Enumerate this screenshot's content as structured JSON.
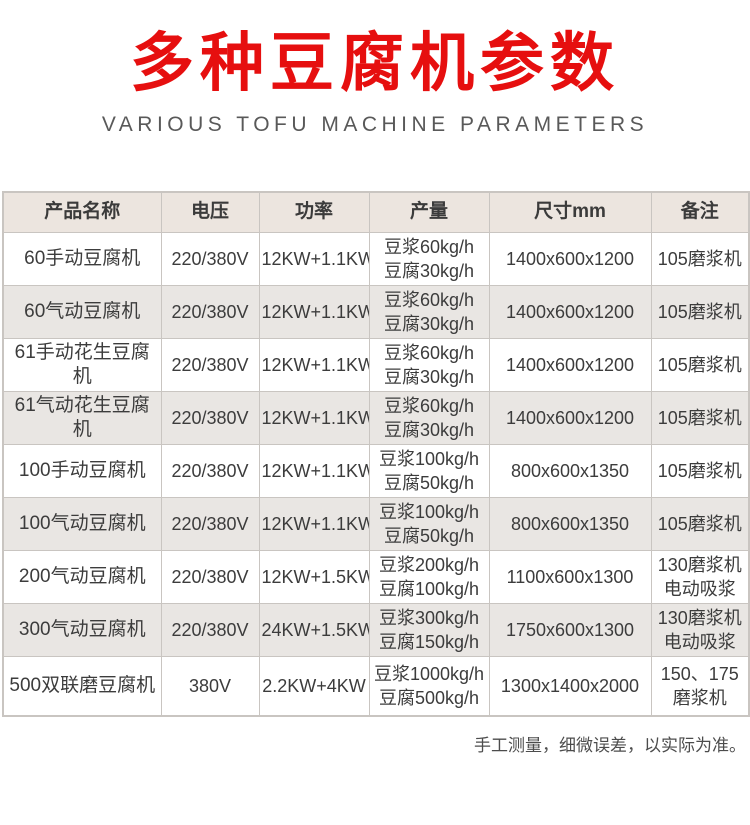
{
  "header": {
    "title": "多种豆腐机参数",
    "subtitle": "VARIOUS TOFU MACHINE PARAMETERS"
  },
  "table": {
    "columns": [
      "产品名称",
      "电压",
      "功率",
      "产量",
      "尺寸mm",
      "备注"
    ],
    "rows": [
      [
        "60手动豆腐机",
        "220/380V",
        "12KW+1.1KW",
        "豆浆60kg/h\n豆腐30kg/h",
        "1400x600x1200",
        "105磨浆机"
      ],
      [
        "60气动豆腐机",
        "220/380V",
        "12KW+1.1KW",
        "豆浆60kg/h\n豆腐30kg/h",
        "1400x600x1200",
        "105磨浆机"
      ],
      [
        "61手动花生豆腐机",
        "220/380V",
        "12KW+1.1KW",
        "豆浆60kg/h\n豆腐30kg/h",
        "1400x600x1200",
        "105磨浆机"
      ],
      [
        "61气动花生豆腐机",
        "220/380V",
        "12KW+1.1KW",
        "豆浆60kg/h\n豆腐30kg/h",
        "1400x600x1200",
        "105磨浆机"
      ],
      [
        "100手动豆腐机",
        "220/380V",
        "12KW+1.1KW",
        "豆浆100kg/h\n豆腐50kg/h",
        "800x600x1350",
        "105磨浆机"
      ],
      [
        "100气动豆腐机",
        "220/380V",
        "12KW+1.1KW",
        "豆浆100kg/h\n豆腐50kg/h",
        "800x600x1350",
        "105磨浆机"
      ],
      [
        "200气动豆腐机",
        "220/380V",
        "12KW+1.5KW",
        "豆浆200kg/h\n豆腐100kg/h",
        "1100x600x1300",
        "130磨浆机\n电动吸浆"
      ],
      [
        "300气动豆腐机",
        "220/380V",
        "24KW+1.5KW",
        "豆浆300kg/h\n豆腐150kg/h",
        "1750x600x1300",
        "130磨浆机\n电动吸浆"
      ],
      [
        "500双联磨豆腐机",
        "380V",
        "2.2KW+4KW",
        "豆浆1000kg/h\n豆腐500kg/h",
        "1300x1400x2000",
        "150、175\n磨浆机"
      ]
    ]
  },
  "footer": {
    "note": "手工测量，细微误差，以实际为准。"
  },
  "colors": {
    "accent_red": "#e60f0f",
    "subtitle_gray": "#595959",
    "header_bg": "#ece5df",
    "alt_row_bg": "#e9e6e3",
    "border": "#c9c5c1",
    "text": "#3c3c3c"
  }
}
